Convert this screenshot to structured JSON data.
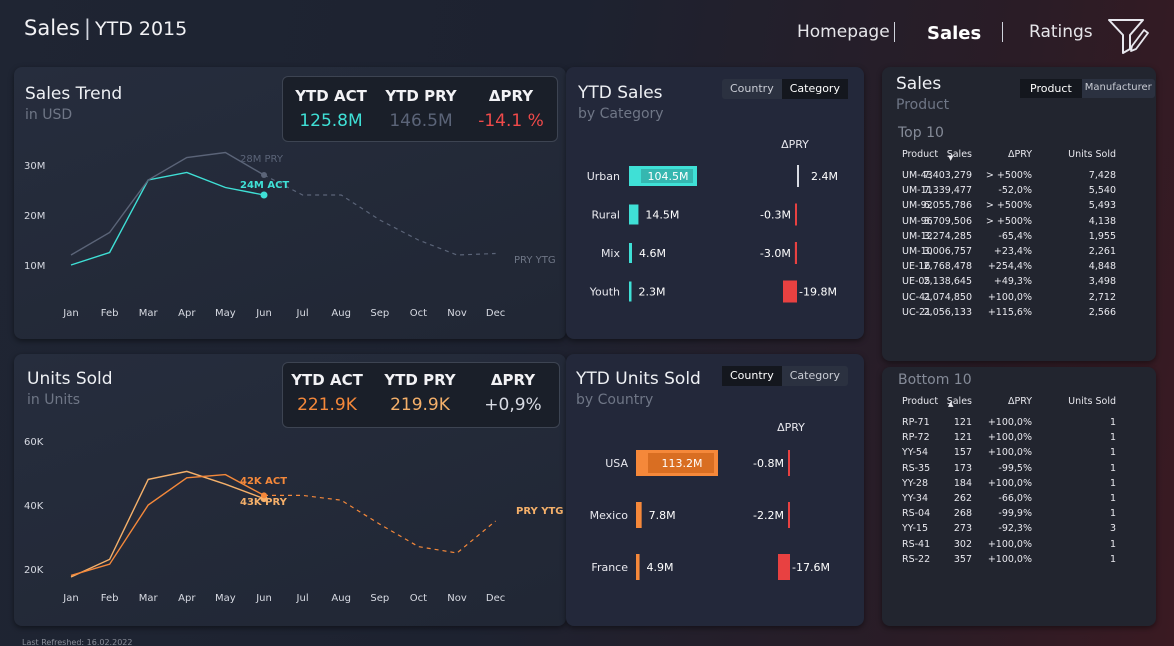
{
  "header": {
    "title_main": "Sales",
    "title_sep": "|",
    "title_sub": "YTD 2015",
    "nav": [
      {
        "label": "Homepage"
      },
      {
        "label": "Sales"
      },
      {
        "label": "Ratings"
      }
    ]
  },
  "sales_trend": {
    "title": "Sales Trend",
    "subtitle": "in USD",
    "kpi": {
      "act_label": "YTD ACT",
      "act_value": "125.8M",
      "pry_label": "YTD PRY",
      "pry_value": "146.5M",
      "delta_label": "ΔPRY",
      "delta_value": "-14.1 %"
    }
  },
  "units_sold": {
    "title": "Units Sold",
    "subtitle": "in Units",
    "kpi": {
      "act_label": "YTD ACT",
      "act_value": "221.9K",
      "pry_label": "YTD PRY",
      "pry_value": "219.9K",
      "delta_label": "ΔPRY",
      "delta_value": "+0,9%"
    }
  },
  "ytd_sales": {
    "title": "YTD Sales",
    "subtitle": "by Category",
    "toggle": [
      "Country",
      "Category"
    ],
    "delta_header": "ΔPRY"
  },
  "ytd_units": {
    "title": "YTD Units Sold",
    "subtitle": "by Country",
    "toggle": [
      "Country",
      "Category"
    ],
    "delta_header": "ΔPRY"
  },
  "product_panel": {
    "title": "Sales",
    "subtitle": "Product",
    "toggle": [
      "Product",
      "Manufacturer"
    ],
    "top_title": "Top 10",
    "bottom_title": "Bottom 10",
    "columns": [
      "Product",
      "Sales",
      "ΔPRY",
      "Units Sold"
    ],
    "top": [
      [
        "UM-43",
        "7,403,279",
        "> +500%",
        "7,428"
      ],
      [
        "UM-11",
        "7,339,477",
        "-52,0%",
        "5,540"
      ],
      [
        "UM-92",
        "6,055,786",
        "> +500%",
        "5,493"
      ],
      [
        "UM-96",
        "3,709,506",
        "> +500%",
        "4,138"
      ],
      [
        "UM-12",
        "3,274,285",
        "-65,4%",
        "1,955"
      ],
      [
        "UM-10",
        "3,006,757",
        "+23,4%",
        "2,261"
      ],
      [
        "UE-16",
        "2,768,478",
        "+254,4%",
        "4,848"
      ],
      [
        "UE-05",
        "2,138,645",
        "+49,3%",
        "3,498"
      ],
      [
        "UC-41",
        "2,074,850",
        "+100,0%",
        "2,712"
      ],
      [
        "UC-21",
        "2,056,133",
        "+115,6%",
        "2,566"
      ]
    ],
    "bottom": [
      [
        "RP-71",
        "121",
        "+100,0%",
        "1"
      ],
      [
        "RP-72",
        "121",
        "+100,0%",
        "1"
      ],
      [
        "YY-54",
        "157",
        "+100,0%",
        "1"
      ],
      [
        "RS-35",
        "173",
        "-99,5%",
        "1"
      ],
      [
        "YY-28",
        "184",
        "+100,0%",
        "1"
      ],
      [
        "YY-34",
        "262",
        "-66,0%",
        "1"
      ],
      [
        "RS-04",
        "268",
        "-99,9%",
        "1"
      ],
      [
        "YY-15",
        "273",
        "-92,3%",
        "3"
      ],
      [
        "RS-41",
        "302",
        "+100,0%",
        "1"
      ],
      [
        "RS-22",
        "357",
        "+100,0%",
        "1"
      ]
    ]
  },
  "colors": {
    "teal": "#3fe0d6",
    "orange": "#f5883a",
    "light_orange": "#f5b06a",
    "red": "#e84141",
    "pry_gray": "#5b6478"
  },
  "footer": "Last Refreshed: 16.02.2022",
  "chart_data": [
    {
      "type": "line",
      "title": "Sales Trend",
      "x": [
        "Jan",
        "Feb",
        "Mar",
        "Apr",
        "May",
        "Jun",
        "Jul",
        "Aug",
        "Sep",
        "Oct",
        "Nov",
        "Dec"
      ],
      "yticks": [
        "10M",
        "20M",
        "30M"
      ],
      "ylim": [
        5,
        35
      ],
      "series": [
        {
          "name": "ACT",
          "values": [
            10,
            12.5,
            27,
            28.5,
            25.5,
            24,
            null,
            null,
            null,
            null,
            null,
            null
          ]
        },
        {
          "name": "PRY",
          "values": [
            12,
            16.5,
            27,
            31.5,
            32.5,
            28,
            null,
            null,
            null,
            null,
            null,
            null
          ]
        },
        {
          "name": "PRY YTG",
          "values": [
            null,
            null,
            null,
            null,
            null,
            28,
            24,
            24,
            19,
            15,
            12,
            12.3
          ]
        }
      ],
      "annotations": [
        "24M ACT",
        "28M PRY",
        "PRY YTG"
      ]
    },
    {
      "type": "line",
      "title": "Units Sold",
      "x": [
        "Jan",
        "Feb",
        "Mar",
        "Apr",
        "May",
        "Jun",
        "Jul",
        "Aug",
        "Sep",
        "Oct",
        "Nov",
        "Dec"
      ],
      "yticks": [
        "20K",
        "40K",
        "60K"
      ],
      "ylim": [
        15,
        65
      ],
      "series": [
        {
          "name": "ACT",
          "values": [
            17.5,
            23,
            48,
            50.5,
            46.5,
            42,
            null,
            null,
            null,
            null,
            null,
            null
          ]
        },
        {
          "name": "PRY",
          "values": [
            18,
            21.5,
            40,
            48.5,
            49.5,
            43,
            null,
            null,
            null,
            null,
            null,
            null
          ]
        },
        {
          "name": "PRY YTG",
          "values": [
            null,
            null,
            null,
            null,
            null,
            43,
            43,
            41.5,
            34,
            27,
            25,
            35
          ]
        }
      ],
      "annotations": [
        "42K ACT",
        "43K PRY",
        "PRY YTG"
      ]
    },
    {
      "type": "bar",
      "title": "YTD Sales",
      "categories": [
        "Urban",
        "Rural",
        "Mix",
        "Youth"
      ],
      "values": [
        104.5,
        14.5,
        4.6,
        2.3
      ],
      "value_labels": [
        "104.5M",
        "14.5M",
        "4.6M",
        "2.3M"
      ],
      "delta_values": [
        2.4,
        -0.3,
        -3.0,
        -19.8
      ],
      "delta_labels": [
        "2.4M",
        "-0.3M",
        "-3.0M",
        "-19.8M"
      ]
    },
    {
      "type": "bar",
      "title": "YTD Units Sold",
      "categories": [
        "USA",
        "Mexico",
        "France"
      ],
      "values": [
        113.2,
        7.8,
        4.9
      ],
      "value_labels": [
        "113.2M",
        "7.8M",
        "4.9M"
      ],
      "delta_values": [
        -0.8,
        -2.2,
        -17.6
      ],
      "delta_labels": [
        "-0.8M",
        "-2.2M",
        "-17.6M"
      ]
    }
  ]
}
